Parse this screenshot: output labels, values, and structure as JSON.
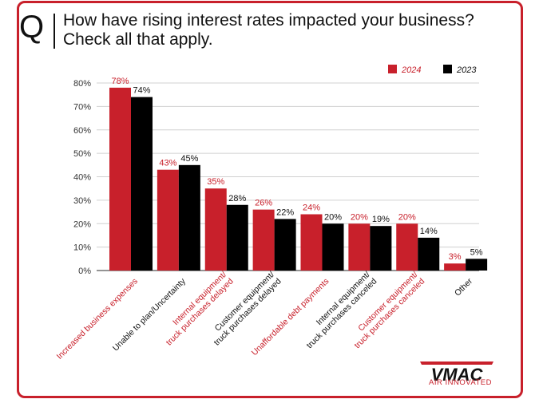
{
  "header": {
    "q_letter": "Q",
    "question": "How have rising interest rates impacted your business? Check all that apply."
  },
  "brand": {
    "logo_text": "VMAC",
    "tagline": "AIR INNOVATED",
    "accent": "#c8202b"
  },
  "chart_data": {
    "type": "bar",
    "categories": [
      [
        "Increased business expenses"
      ],
      [
        "Unable to plan/Uncertainty"
      ],
      [
        "Internal equipment/",
        "truck purchases delayed"
      ],
      [
        "Customer equipment/",
        "truck purchases delayed"
      ],
      [
        "Unaffordable debt payments"
      ],
      [
        "Internal equipment/",
        "truck purchases canceled"
      ],
      [
        "Customer equipment/",
        "truck purchases canceled"
      ],
      [
        "Other"
      ]
    ],
    "category_label_colors": [
      "#c8202b",
      "#111111",
      "#c8202b",
      "#111111",
      "#c8202b",
      "#111111",
      "#c8202b",
      "#111111"
    ],
    "series": [
      {
        "name": "2024",
        "color": "#c8202b",
        "values": [
          78,
          43,
          35,
          26,
          24,
          20,
          20,
          3
        ],
        "labels": [
          "78%",
          "43%",
          "35%",
          "26%",
          "24%",
          "20%",
          "20%",
          "3%"
        ]
      },
      {
        "name": "2023",
        "color": "#000000",
        "values": [
          74,
          45,
          28,
          22,
          20,
          19,
          14,
          5
        ],
        "labels": [
          "74%",
          "45%",
          "28%",
          "22%",
          "20%",
          "19%",
          "14%",
          "5%"
        ]
      }
    ],
    "ylim": [
      0,
      80
    ],
    "yticks": [
      "0%",
      "10%",
      "20%",
      "30%",
      "40%",
      "50%",
      "60%",
      "70%",
      "80%"
    ],
    "grid": true,
    "legend_position": "top-right"
  }
}
